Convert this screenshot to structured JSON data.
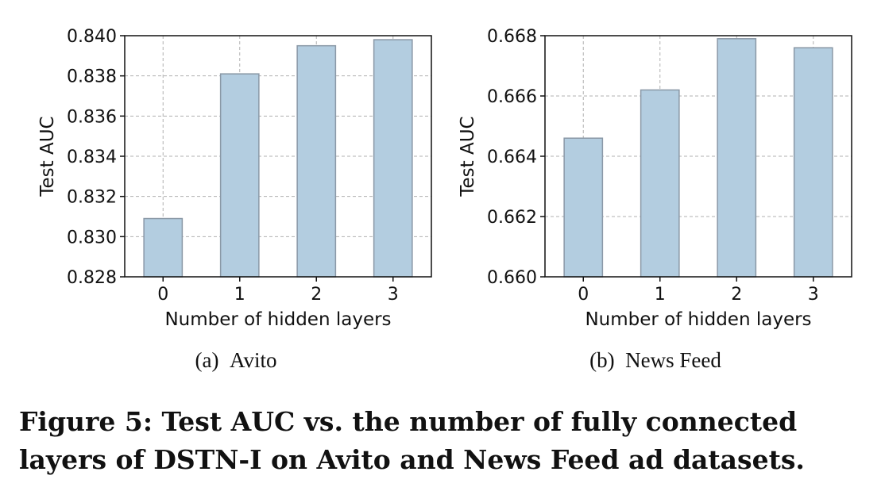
{
  "chart_data": [
    {
      "type": "bar",
      "categories": [
        "0",
        "1",
        "2",
        "3"
      ],
      "values": [
        0.8309,
        0.8381,
        0.8395,
        0.8398
      ],
      "xlabel": "Number of hidden layers",
      "ylabel": "Test AUC",
      "ylim": [
        0.828,
        0.84
      ],
      "yticks": [
        "0.828",
        "0.830",
        "0.832",
        "0.834",
        "0.836",
        "0.838",
        "0.840"
      ],
      "grid": true,
      "subcaption_label": "(a)",
      "subcaption_text": "Avito",
      "bar_color": "#b3cde0",
      "bar_edge": "#8a98a6"
    },
    {
      "type": "bar",
      "categories": [
        "0",
        "1",
        "2",
        "3"
      ],
      "values": [
        0.6646,
        0.6662,
        0.6679,
        0.6676
      ],
      "xlabel": "Number of hidden layers",
      "ylabel": "Test AUC",
      "ylim": [
        0.66,
        0.668
      ],
      "yticks": [
        "0.660",
        "0.662",
        "0.664",
        "0.666",
        "0.668"
      ],
      "grid": true,
      "subcaption_label": "(b)",
      "subcaption_text": "News Feed",
      "bar_color": "#b3cde0",
      "bar_edge": "#8a98a6"
    }
  ],
  "caption": "Figure 5: Test AUC vs. the number of fully connected layers of DSTN-I on Avito and News Feed ad datasets."
}
